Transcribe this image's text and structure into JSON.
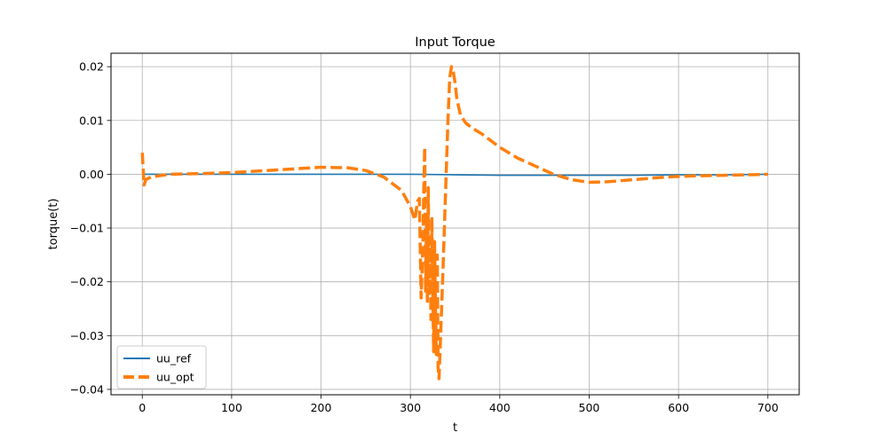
{
  "chart_data": {
    "type": "line",
    "title": "Input Torque",
    "xlabel": "t",
    "ylabel": "torque(t)",
    "xlim": [
      -35,
      735
    ],
    "ylim": [
      -0.041,
      0.0225
    ],
    "xticks": [
      0,
      100,
      200,
      300,
      400,
      500,
      600,
      700
    ],
    "xtick_labels": [
      "0",
      "100",
      "200",
      "300",
      "400",
      "500",
      "600",
      "700"
    ],
    "yticks": [
      -0.04,
      -0.03,
      -0.02,
      -0.01,
      0.0,
      0.01,
      0.02
    ],
    "ytick_labels": [
      "−0.04",
      "−0.03",
      "−0.02",
      "−0.01",
      "0.00",
      "0.01",
      "0.02"
    ],
    "grid": true,
    "legend_position": "lower-left",
    "series": [
      {
        "name": "uu_ref",
        "color": "#1f77b4",
        "style": "solid",
        "x": [
          0,
          100,
          200,
          250,
          300,
          350,
          400,
          450,
          500,
          550,
          600,
          650,
          700
        ],
        "y": [
          0.0,
          0.0,
          0.0,
          0.0,
          0.0,
          -0.0001,
          -0.0002,
          -0.0002,
          -0.0002,
          -0.0002,
          -0.0001,
          -0.0001,
          0.0
        ]
      },
      {
        "name": "uu_opt",
        "color": "#ff7f0e",
        "style": "dashed",
        "x": [
          0,
          2,
          4,
          10,
          30,
          60,
          100,
          150,
          200,
          230,
          250,
          270,
          290,
          300,
          305,
          308,
          310,
          312,
          314,
          315,
          316,
          317,
          318,
          319,
          320,
          321,
          322,
          323,
          324,
          325,
          326,
          327,
          328,
          329,
          330,
          331,
          332,
          334,
          336,
          338,
          340,
          342,
          344,
          346,
          348,
          350,
          352,
          356,
          362,
          370,
          380,
          400,
          420,
          440,
          460,
          480,
          500,
          520,
          550,
          580,
          600,
          620,
          650,
          680,
          700
        ],
        "y": [
          0.004,
          -0.002,
          -0.001,
          -0.0005,
          0.0,
          0.0001,
          0.0003,
          0.0008,
          0.0013,
          0.0012,
          0.0007,
          -0.0005,
          -0.003,
          -0.006,
          -0.0085,
          -0.005,
          -0.0045,
          -0.023,
          -0.013,
          -0.0025,
          0.005,
          -0.022,
          -0.0085,
          -0.024,
          -0.0025,
          -0.0225,
          -0.0135,
          -0.027,
          -0.008,
          -0.022,
          -0.033,
          -0.0125,
          -0.024,
          -0.0335,
          -0.015,
          -0.036,
          -0.038,
          -0.029,
          -0.02,
          -0.01,
          0.0,
          0.01,
          0.018,
          0.02,
          0.019,
          0.017,
          0.014,
          0.011,
          0.0095,
          0.0085,
          0.0075,
          0.005,
          0.003,
          0.0015,
          0.0,
          -0.001,
          -0.0015,
          -0.0014,
          -0.001,
          -0.0006,
          -0.0004,
          -0.0003,
          -0.0002,
          -0.0001,
          0.0
        ]
      }
    ]
  }
}
